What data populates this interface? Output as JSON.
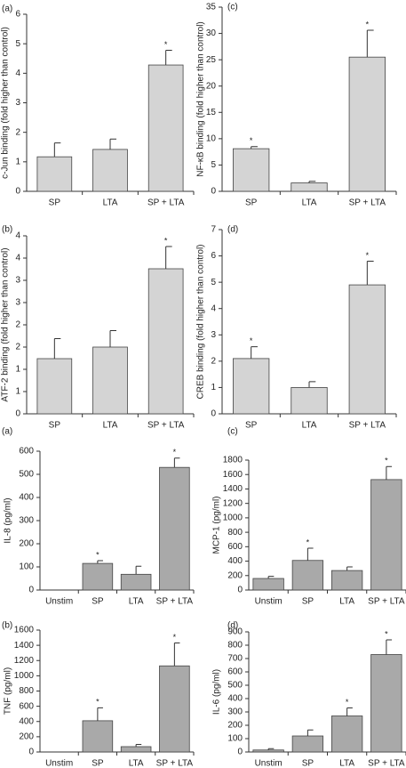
{
  "chart_data": [
    {
      "type": "bar",
      "panel": "(a)",
      "ylabel": "c-Jun binding (fold higher than control)",
      "categories": [
        "SP",
        "LTA",
        "SP + LTA"
      ],
      "values": [
        1.17,
        1.42,
        4.28
      ],
      "errors": [
        0.47,
        0.35,
        0.5
      ],
      "significant": [
        false,
        false,
        true
      ],
      "star_label": "*",
      "color": "#d4d4d4",
      "ylim": [
        0,
        6
      ],
      "yticks": [
        0,
        1,
        2,
        3,
        4,
        5,
        6
      ]
    },
    {
      "type": "bar",
      "panel": "(c)",
      "ylabel": "NF-κB binding (fold higher than control)",
      "categories": [
        "SP",
        "LTA",
        "SP + LTA"
      ],
      "values": [
        8.1,
        1.6,
        25.5
      ],
      "errors": [
        0.4,
        0.3,
        5.1
      ],
      "significant": [
        true,
        false,
        true
      ],
      "star_label": "*",
      "color": "#d4d4d4",
      "ylim": [
        0,
        35
      ],
      "yticks": [
        0,
        5,
        10,
        15,
        20,
        25,
        30,
        35
      ]
    },
    {
      "type": "bar",
      "panel": "(b)",
      "ylabel": "ATF-2 binding (fold higher than control)",
      "categories": [
        "SP",
        "LTA",
        "SP + LTA"
      ],
      "values": [
        1.24,
        1.5,
        3.26
      ],
      "errors": [
        0.45,
        0.37,
        0.5
      ],
      "significant": [
        false,
        false,
        true
      ],
      "star_label": "*",
      "color": "#d4d4d4",
      "ylim": [
        0,
        4
      ],
      "yticks": [
        0,
        {
          "value": 0.5,
          "label": "1"
        },
        1,
        {
          "value": 1.5,
          "label": "2"
        },
        2,
        {
          "value": 2.5,
          "label": "3"
        },
        3,
        {
          "value": 3.5,
          "label": "4"
        },
        4
      ]
    },
    {
      "type": "bar",
      "panel": "(d)",
      "ylabel": "CREB binding (fold higher than control)",
      "categories": [
        "SP",
        "LTA",
        "SP + LTA"
      ],
      "values": [
        2.1,
        1.0,
        4.9
      ],
      "errors": [
        0.45,
        0.22,
        0.9
      ],
      "significant": [
        true,
        false,
        true
      ],
      "star_label": "*",
      "color": "#d4d4d4",
      "ylim": [
        0,
        7
      ],
      "yticks": [
        0,
        1,
        2,
        3,
        4,
        5,
        6,
        7
      ]
    },
    {
      "type": "bar",
      "panel": "(a)",
      "ylabel": "IL-8 (pg/ml)",
      "categories": [
        "Unstim",
        "SP",
        "LTA",
        "SP + LTA"
      ],
      "values": [
        0,
        115,
        68,
        530
      ],
      "errors": [
        0,
        12,
        35,
        40
      ],
      "significant": [
        false,
        true,
        false,
        true
      ],
      "star_label": "*",
      "color": "#a9a9a9",
      "ylim": [
        0,
        600
      ],
      "yticks": [
        0,
        100,
        200,
        300,
        400,
        500,
        600
      ]
    },
    {
      "type": "bar",
      "panel": "(c)",
      "ylabel": "MCP-1 (pg/ml)",
      "categories": [
        "Unstim",
        "SP",
        "LTA",
        "SP + LTA"
      ],
      "values": [
        160,
        410,
        270,
        1530
      ],
      "errors": [
        30,
        170,
        50,
        180
      ],
      "significant": [
        false,
        true,
        false,
        true
      ],
      "star_label": "*",
      "color": "#a9a9a9",
      "ylim": [
        0,
        1800
      ],
      "yticks": [
        0,
        200,
        400,
        600,
        800,
        1000,
        1200,
        1400,
        1600,
        1800
      ]
    },
    {
      "type": "bar",
      "panel": "(b)",
      "ylabel": "TNF (pg/ml)",
      "categories": [
        "Unstim",
        "SP",
        "LTA",
        "SP + LTA"
      ],
      "values": [
        0,
        410,
        70,
        1130
      ],
      "errors": [
        0,
        170,
        30,
        300
      ],
      "significant": [
        false,
        true,
        false,
        true
      ],
      "star_label": "*",
      "color": "#a9a9a9",
      "ylim": [
        0,
        1600
      ],
      "yticks": [
        0,
        200,
        400,
        600,
        800,
        1000,
        1200,
        1400,
        1600
      ]
    },
    {
      "type": "bar",
      "panel": "(d)",
      "ylabel": "IL-6 (pg/ml)",
      "categories": [
        "Unstim",
        "SP",
        "LTA",
        "SP + LTA"
      ],
      "values": [
        15,
        120,
        270,
        730
      ],
      "errors": [
        10,
        45,
        60,
        110
      ],
      "significant": [
        false,
        false,
        true,
        true
      ],
      "star_label": "*",
      "color": "#a9a9a9",
      "ylim": [
        0,
        900
      ],
      "yticks": [
        0,
        100,
        200,
        300,
        400,
        500,
        600,
        700,
        800,
        900
      ]
    }
  ]
}
